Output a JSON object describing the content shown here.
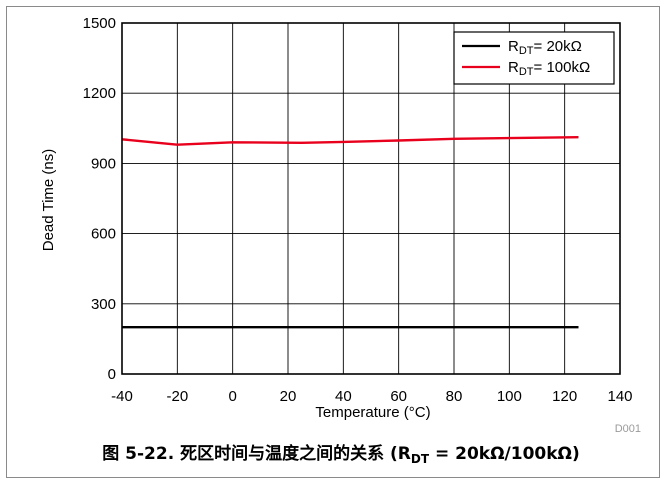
{
  "chart_data": {
    "type": "line",
    "xlabel": "Temperature (°C)",
    "ylabel": "Dead Time (ns)",
    "xlim": [
      -40,
      140
    ],
    "ylim": [
      0,
      1500
    ],
    "xticks": [
      -40,
      -20,
      0,
      20,
      40,
      60,
      80,
      100,
      120,
      140
    ],
    "yticks": [
      0,
      300,
      600,
      900,
      1200,
      1500
    ],
    "grid": true,
    "legend_position": "top-right",
    "series": [
      {
        "name_main": "R",
        "name_sub": "DT",
        "name_rest": "= 20kΩ",
        "color": "#000000",
        "x": [
          -40,
          -20,
          0,
          20,
          40,
          60,
          80,
          100,
          125
        ],
        "y": [
          200,
          200,
          200,
          200,
          200,
          200,
          200,
          200,
          200
        ]
      },
      {
        "name_main": "R",
        "name_sub": "DT",
        "name_rest": "= 100kΩ",
        "color": "#e8001c",
        "x": [
          -40,
          -20,
          0,
          25,
          40,
          60,
          80,
          100,
          125
        ],
        "y": [
          1003,
          980,
          990,
          988,
          992,
          998,
          1005,
          1008,
          1012
        ]
      }
    ],
    "code": "D001"
  },
  "caption": {
    "main": "图 5-22. 死区时间与温度之间的关系 (R",
    "sub": "DT",
    "rest": " = 20kΩ/100kΩ)"
  }
}
